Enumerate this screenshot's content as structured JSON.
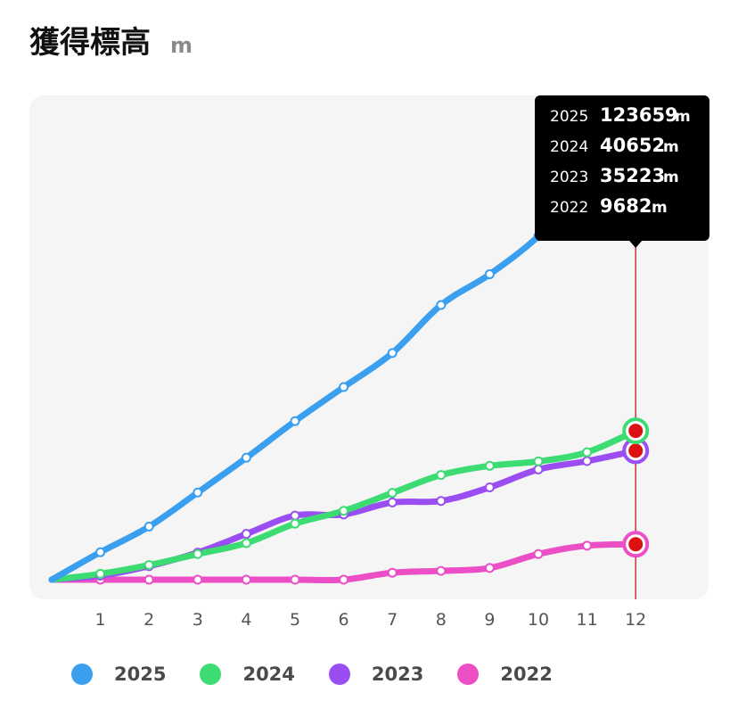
{
  "header": {
    "title": "獲得標高",
    "unit": "m"
  },
  "chart_data": {
    "type": "line",
    "x": [
      0,
      1,
      2,
      3,
      4,
      5,
      6,
      7,
      8,
      9,
      10,
      11,
      12
    ],
    "x_tick_labels": [
      "1",
      "2",
      "3",
      "4",
      "5",
      "6",
      "7",
      "8",
      "9",
      "10",
      "11",
      "12"
    ],
    "ylim": [
      0,
      132000
    ],
    "grid": false,
    "legend_position": "bottom",
    "series": [
      {
        "name": "2025",
        "color": "#3b9ff0",
        "values": [
          0,
          7500,
          14500,
          23800,
          33300,
          43300,
          52600,
          61900,
          75000,
          83400,
          93800,
          108000,
          123659
        ]
      },
      {
        "name": "2024",
        "color": "#3ddc73",
        "values": [
          0,
          1600,
          4000,
          7000,
          10000,
          15300,
          18800,
          23700,
          28600,
          31100,
          32300,
          34800,
          40652
        ]
      },
      {
        "name": "2023",
        "color": "#9a4ef2",
        "values": [
          0,
          1100,
          3700,
          7400,
          12500,
          17500,
          17800,
          21100,
          21500,
          25200,
          30100,
          32400,
          35223
        ]
      },
      {
        "name": "2022",
        "color": "#ec4ec5",
        "values": [
          0,
          0,
          0,
          0,
          0,
          0,
          0,
          1900,
          2400,
          3200,
          7000,
          9300,
          9682
        ]
      }
    ],
    "selected_index": 12,
    "tooltip": {
      "rows": [
        {
          "year": "2025",
          "value": "123659",
          "unit": "m"
        },
        {
          "year": "2024",
          "value": "40652",
          "unit": "m"
        },
        {
          "year": "2023",
          "value": "35223",
          "unit": "m"
        },
        {
          "year": "2022",
          "value": "9682",
          "unit": "m"
        }
      ]
    }
  }
}
